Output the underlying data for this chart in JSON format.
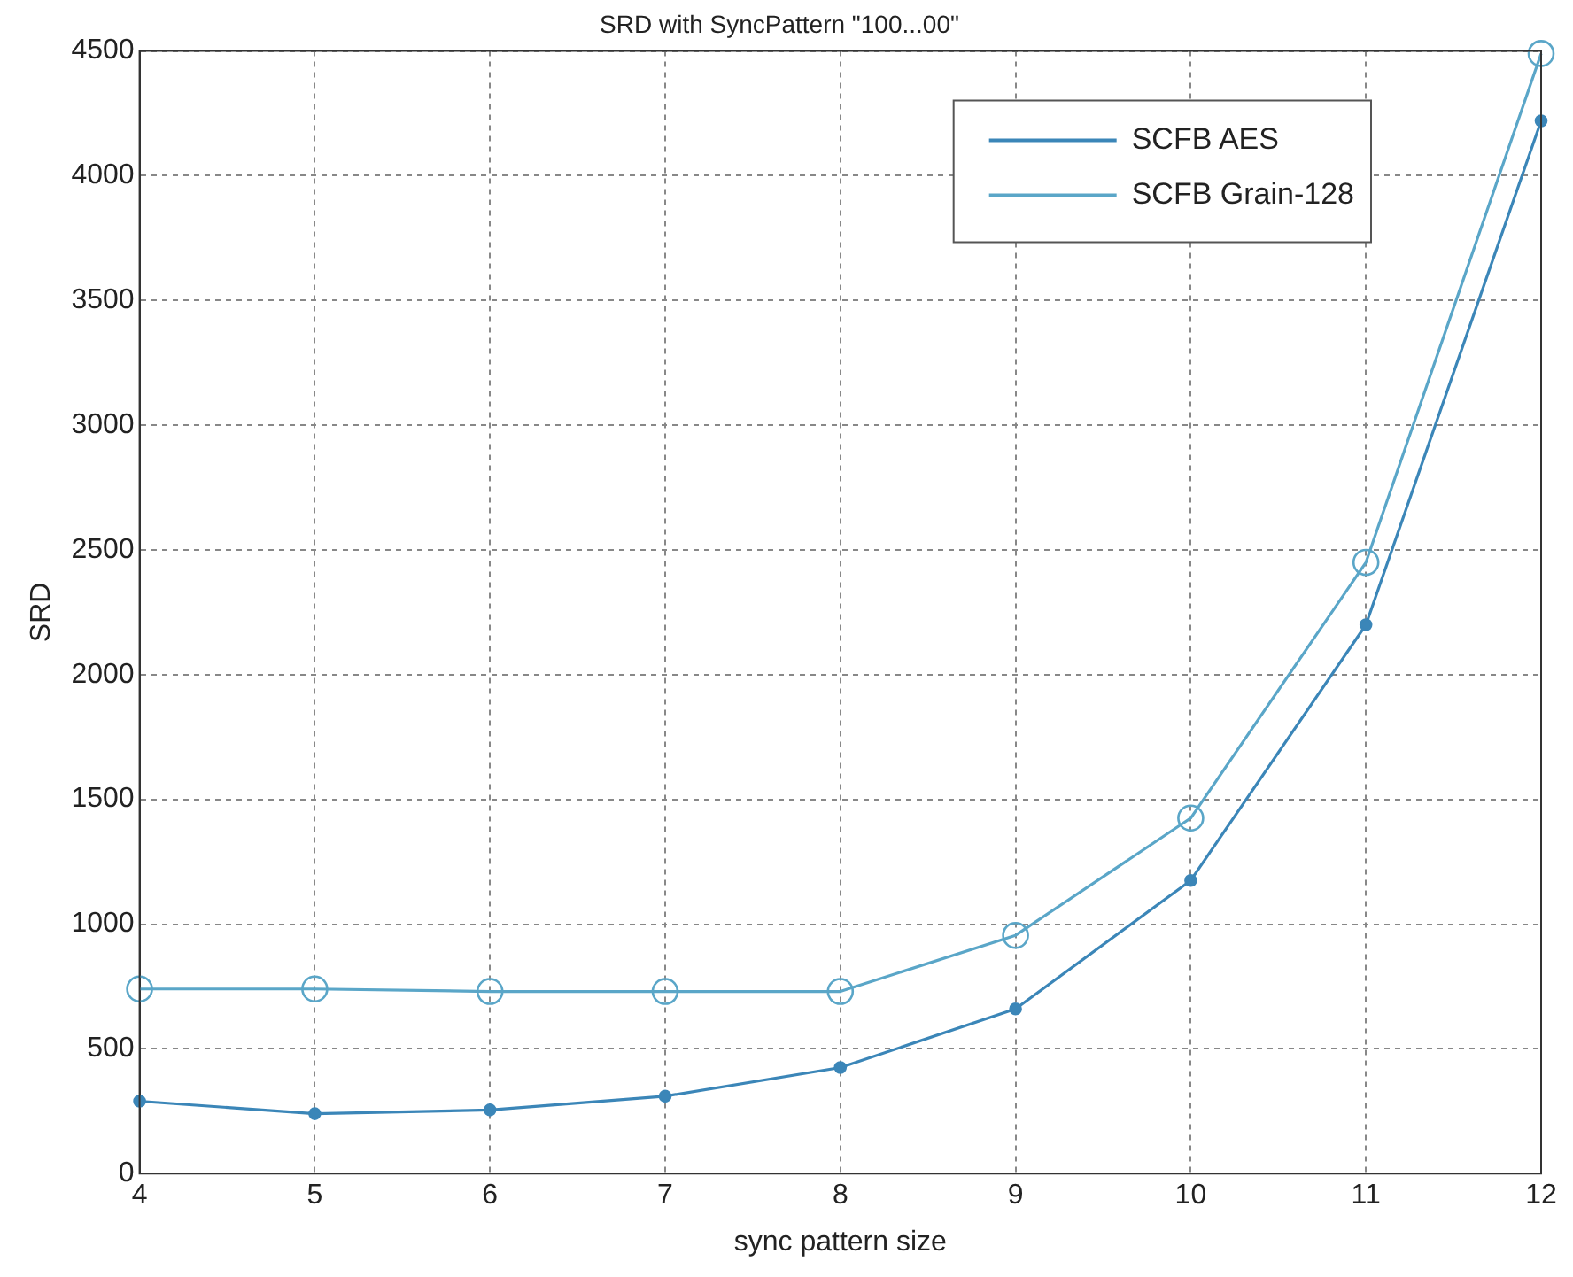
{
  "chart_data": {
    "type": "line",
    "title": "SRD with SyncPattern \"100...00\"",
    "xlabel": "sync pattern size",
    "ylabel": "SRD",
    "x": [
      4,
      5,
      6,
      7,
      8,
      9,
      10,
      11,
      12
    ],
    "series": [
      {
        "name": "SCFB AES",
        "color": "#3b86b8",
        "marker": "circle",
        "values": [
          290,
          240,
          255,
          310,
          425,
          660,
          1175,
          2200,
          4220
        ]
      },
      {
        "name": "SCFB Grain-128",
        "color": "#5aa6c8",
        "marker": "circle",
        "values": [
          740,
          740,
          730,
          730,
          730,
          955,
          1425,
          2450,
          4490
        ]
      }
    ],
    "xlim": [
      4,
      12
    ],
    "xticks": [
      4,
      5,
      6,
      7,
      8,
      9,
      10,
      11,
      12
    ],
    "ylim": [
      0,
      4500
    ],
    "yticks": [
      0,
      500,
      1000,
      1500,
      2000,
      2500,
      3000,
      3500,
      4000,
      4500
    ],
    "grid": true,
    "legend": "top right",
    "line_style": "solid"
  }
}
